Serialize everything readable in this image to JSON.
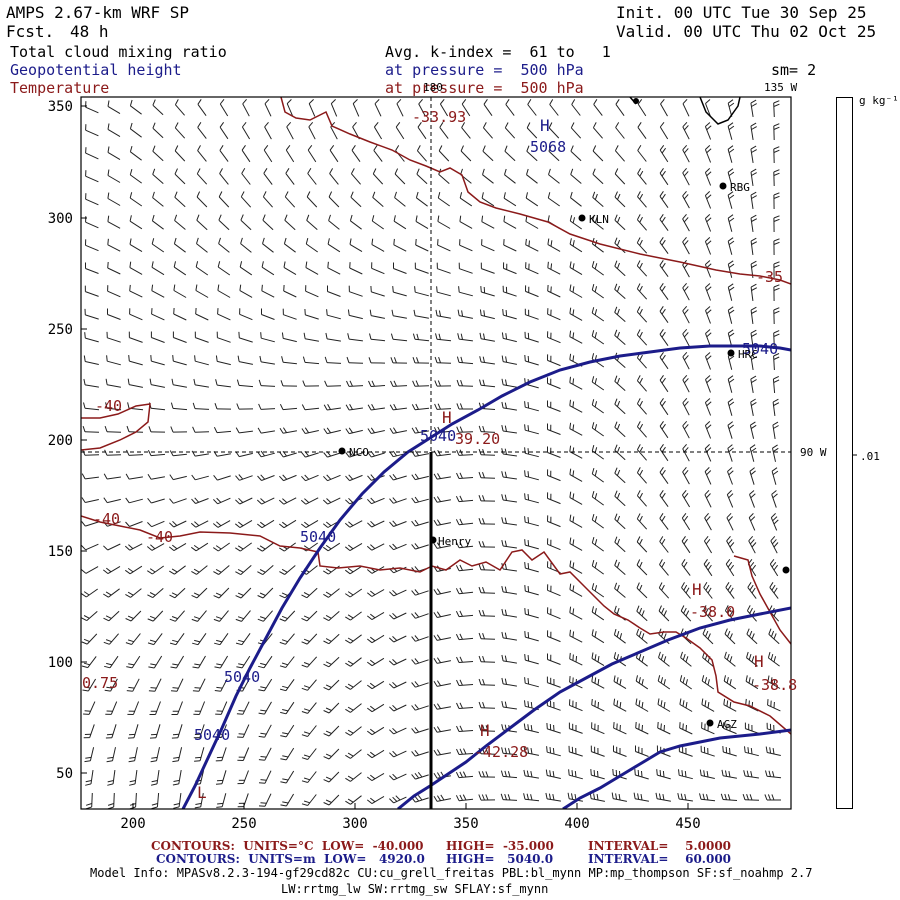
{
  "header": {
    "model": "AMPS 2.67-km WRF SP",
    "fcst_label": "Fcst.",
    "fcst_value": "48 h",
    "init": "Init. 00 UTC Tue 30 Sep 25",
    "valid": "Valid. 00 UTC Thu 02 Oct 25",
    "field1": "Total cloud mixing ratio",
    "field2": "Geopotential height",
    "field3": "Temperature",
    "avg": "Avg. k-index =  61 to   1",
    "pressure1": "at pressure =  500 hPa",
    "pressure2": "at pressure =  500 hPa",
    "sm": "sm= 2"
  },
  "axes": {
    "x_ticks": [
      "200",
      "250",
      "300",
      "350",
      "400",
      "450"
    ],
    "y_ticks": [
      "350",
      "300",
      "250",
      "200",
      "150",
      "100",
      "50"
    ]
  },
  "map_labels": {
    "lon_180": "180",
    "lon_135w": "135 W",
    "lon_90w": "90 W",
    "colorbar_unit": "g kg⁻¹",
    "colorbar_value": ".01",
    "temp_labels": [
      "-33.93",
      "-35",
      "-40",
      "-40",
      "-40",
      "-39.20",
      "-38.0",
      "-42.28",
      "-38.8",
      "0.75"
    ],
    "height_labels": [
      "5068",
      "5040",
      "5040",
      "5040",
      "5040",
      "5040"
    ],
    "high_markers": [
      "H",
      "H",
      "H",
      "H",
      "H"
    ],
    "low_marker": "L"
  },
  "stations": [
    "RBG",
    "KLN",
    "HRC",
    "NCO",
    "Henry",
    "AGZ"
  ],
  "footer": {
    "line1_a": "CONTOURS:  UNITS=°C  LOW=  -40.000",
    "line1_b": "HIGH=  -35.000",
    "line1_c": "INTERVAL=    5.0000",
    "line2_a": "CONTOURS:  UNITS=m  LOW=   4920.0",
    "line2_b": "HIGH=   5040.0",
    "line2_c": "INTERVAL=    60.000",
    "model_info": "Model Info: MPASv8.2.3-194-gf29cd82c CU:cu_grell_freitas PBL:bl_mynn MP:mp_thompson SF:sf_noahmp 2.7",
    "model_info2": "LW:rrtmg_lw SW:rrtmg_sw SFLAY:sf_mynn"
  },
  "colors": {
    "height_contour": "#1c1c8a",
    "temp_contour": "#8b1a1a",
    "barb": "#222222"
  }
}
